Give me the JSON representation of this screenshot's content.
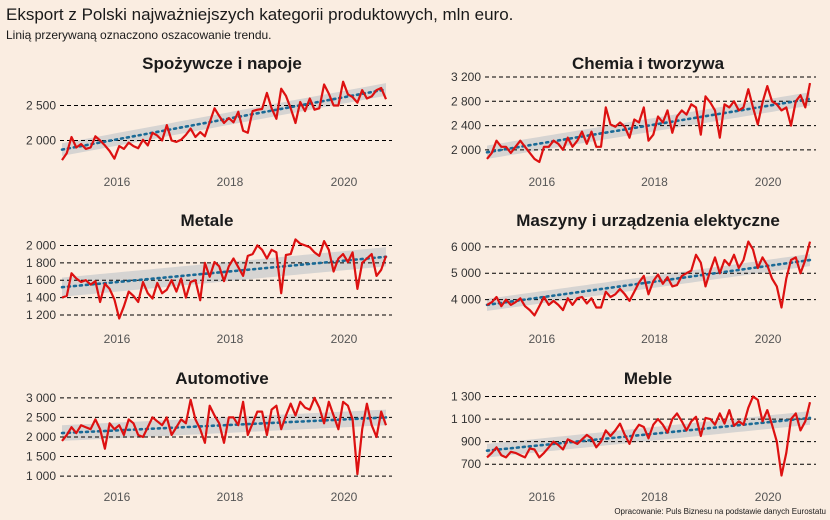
{
  "title": "Eksport z Polski najważniejszych kategorii produktowych, mln euro.",
  "subtitle": "Linią przerywaną oznaczono oszacowanie trendu.",
  "caption": "Opracowanie: Puls Biznesu na podstawie danych Eurostatu",
  "colors": {
    "background": "#faede1",
    "series": "#dd1111",
    "trend": "#1a6a96",
    "band": "#cfcfcf",
    "grid": "#000000"
  },
  "chart_data": [
    {
      "type": "line",
      "title": "Spożywcze i napoje",
      "x_start": "2015-01",
      "x_end": "2020-09",
      "x_ticks": [
        "2016",
        "2018",
        "2020"
      ],
      "ylim": [
        1650,
        2950
      ],
      "yticks": [
        2000,
        2500
      ],
      "ytick_labels": [
        "2 000",
        "2 500"
      ],
      "trend": [
        1870,
        2730
      ],
      "band": 90,
      "values": [
        1720,
        1820,
        2050,
        1900,
        1950,
        1880,
        1900,
        2060,
        2000,
        1930,
        1850,
        1740,
        1920,
        1880,
        1970,
        1920,
        1890,
        2010,
        1930,
        2110,
        2070,
        2000,
        2220,
        2000,
        1980,
        2010,
        2080,
        2170,
        2050,
        2120,
        2060,
        2260,
        2460,
        2350,
        2250,
        2320,
        2260,
        2410,
        2140,
        2110,
        2420,
        2440,
        2450,
        2680,
        2460,
        2310,
        2740,
        2640,
        2460,
        2250,
        2550,
        2420,
        2600,
        2440,
        2460,
        2800,
        2670,
        2500,
        2500,
        2840,
        2660,
        2620,
        2540,
        2720,
        2600,
        2630,
        2720,
        2750,
        2590
      ]
    },
    {
      "type": "line",
      "title": "Chemia i tworzywa",
      "x_start": "2015-01",
      "x_end": "2020-09",
      "x_ticks": [
        "2016",
        "2018",
        "2020"
      ],
      "ylim": [
        1750,
        3250
      ],
      "yticks": [
        2000,
        2400,
        2800,
        3200
      ],
      "ytick_labels": [
        "2 000",
        "2 400",
        "2 800",
        "3 200"
      ],
      "trend": [
        1960,
        2840
      ],
      "band": 110,
      "values": [
        1850,
        1950,
        2150,
        2050,
        2050,
        1950,
        2050,
        2150,
        2050,
        1950,
        1850,
        1800,
        2050,
        2050,
        2150,
        2100,
        2000,
        2200,
        2050,
        2150,
        2300,
        2100,
        2300,
        2050,
        2050,
        2700,
        2420,
        2380,
        2450,
        2380,
        2200,
        2500,
        2450,
        2700,
        2150,
        2250,
        2550,
        2450,
        2650,
        2280,
        2550,
        2650,
        2580,
        2750,
        2700,
        2250,
        2880,
        2780,
        2650,
        2200,
        2750,
        2700,
        2800,
        2650,
        2700,
        3000,
        2700,
        2420,
        2780,
        3050,
        2800,
        2750,
        2650,
        2700,
        2400,
        2800,
        2900,
        2700,
        3100
      ]
    },
    {
      "type": "line",
      "title": "Metale",
      "x_start": "2015-01",
      "x_end": "2020-09",
      "x_ticks": [
        "2016",
        "2018",
        "2020"
      ],
      "ylim": [
        1120,
        2120
      ],
      "yticks": [
        1200,
        1400,
        1600,
        1800,
        2000
      ],
      "ytick_labels": [
        "1 200",
        "1 400",
        "1 600",
        "1 800",
        "2 000"
      ],
      "trend": [
        1520,
        1870
      ],
      "band": 110,
      "values": [
        1400,
        1420,
        1680,
        1620,
        1580,
        1600,
        1550,
        1590,
        1350,
        1560,
        1500,
        1380,
        1160,
        1300,
        1470,
        1420,
        1350,
        1580,
        1450,
        1390,
        1570,
        1450,
        1490,
        1600,
        1470,
        1620,
        1400,
        1580,
        1600,
        1370,
        1800,
        1640,
        1810,
        1760,
        1590,
        1760,
        1850,
        1750,
        1650,
        1880,
        1900,
        2000,
        1950,
        1850,
        1950,
        1920,
        1450,
        1890,
        1900,
        2070,
        2020,
        2000,
        1980,
        1920,
        1880,
        2050,
        1950,
        1700,
        1850,
        1900,
        1810,
        1920,
        1500,
        1800,
        1850,
        1900,
        1650,
        1720,
        1880
      ]
    },
    {
      "type": "line",
      "title": "Maszyny i urządzenia elektyczne",
      "x_start": "2015-01",
      "x_end": "2020-09",
      "x_ticks": [
        "2016",
        "2018",
        "2020"
      ],
      "ylim": [
        3150,
        6450
      ],
      "yticks": [
        4000,
        5000,
        6000
      ],
      "ytick_labels": [
        "4 000",
        "5 000",
        "6 000"
      ],
      "trend": [
        3800,
        5500
      ],
      "band": 230,
      "values": [
        3800,
        3900,
        4100,
        3750,
        4000,
        3800,
        3900,
        4050,
        3750,
        3600,
        3400,
        3750,
        4100,
        3800,
        3950,
        3800,
        3600,
        4050,
        3800,
        4050,
        4100,
        3850,
        4050,
        3700,
        3700,
        4300,
        4100,
        4200,
        4400,
        4200,
        3950,
        4300,
        4650,
        4900,
        4200,
        4700,
        4950,
        4600,
        4850,
        4500,
        4550,
        4900,
        5000,
        5100,
        5700,
        5400,
        4500,
        5100,
        5600,
        5000,
        5500,
        5300,
        5700,
        5200,
        5500,
        6200,
        5900,
        5200,
        5600,
        5300,
        4800,
        4500,
        3700,
        4800,
        5500,
        5600,
        5000,
        5500,
        6200
      ]
    },
    {
      "type": "line",
      "title": "Automotive",
      "x_start": "2015-01",
      "x_end": "2020-09",
      "x_ticks": [
        "2016",
        "2018",
        "2020"
      ],
      "ylim": [
        900,
        3150
      ],
      "yticks": [
        1000,
        1500,
        2000,
        2500,
        3000
      ],
      "ytick_labels": [
        "1 000",
        "1 500",
        "2 000",
        "2 500",
        "3 000"
      ],
      "trend": [
        2100,
        2500
      ],
      "band": 200,
      "values": [
        1900,
        2050,
        2250,
        2100,
        2300,
        2250,
        2200,
        2450,
        2200,
        1700,
        2350,
        2200,
        2300,
        2050,
        2450,
        2350,
        2050,
        2000,
        2250,
        2500,
        2400,
        2300,
        2500,
        2050,
        2250,
        2450,
        2350,
        2950,
        2450,
        2200,
        1850,
        2800,
        2550,
        2350,
        1850,
        2500,
        2500,
        2300,
        2900,
        2050,
        2350,
        2650,
        2650,
        2050,
        2700,
        2800,
        2200,
        2550,
        2850,
        2550,
        2900,
        2750,
        2700,
        3000,
        2750,
        2350,
        2900,
        2550,
        2200,
        2900,
        2800,
        2450,
        1050,
        2200,
        2850,
        2300,
        2000,
        2650,
        2300
      ]
    },
    {
      "type": "line",
      "title": "Meble",
      "x_start": "2015-01",
      "x_end": "2020-09",
      "x_ticks": [
        "2016",
        "2018",
        "2020"
      ],
      "ylim": [
        560,
        1340
      ],
      "yticks": [
        700,
        900,
        1100,
        1300
      ],
      "ytick_labels": [
        "700",
        "900",
        "1 100",
        "1 300"
      ],
      "trend": [
        820,
        1110
      ],
      "band": 60,
      "values": [
        760,
        800,
        850,
        780,
        760,
        810,
        800,
        780,
        760,
        840,
        830,
        760,
        800,
        850,
        900,
        870,
        830,
        920,
        900,
        880,
        920,
        960,
        930,
        850,
        900,
        1000,
        950,
        1000,
        1060,
        960,
        880,
        990,
        1050,
        1030,
        930,
        1050,
        1100,
        1050,
        980,
        1100,
        1150,
        1080,
        1000,
        1080,
        1120,
        950,
        1110,
        1100,
        1050,
        1150,
        1060,
        1180,
        1040,
        1080,
        1050,
        1200,
        1300,
        1270,
        1080,
        1180,
        1050,
        900,
        600,
        800,
        1100,
        1150,
        1000,
        1080,
        1250
      ]
    }
  ]
}
